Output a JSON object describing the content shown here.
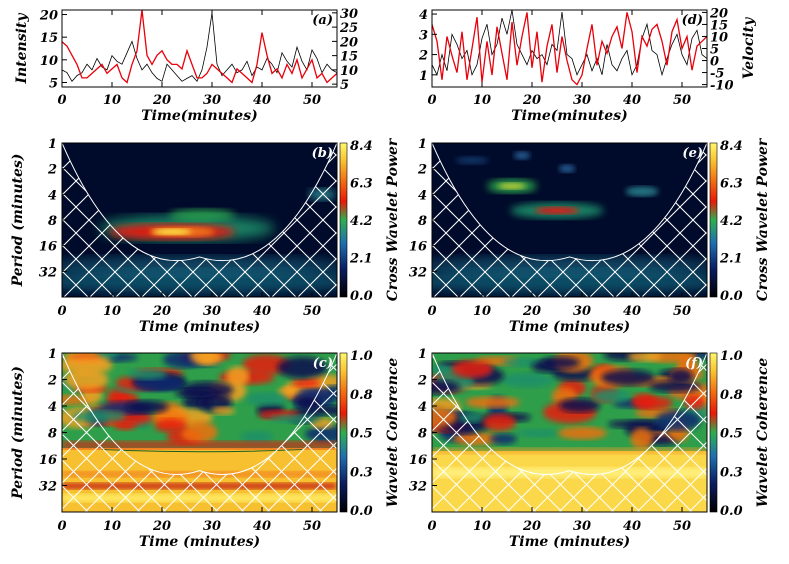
{
  "chart_data": [
    {
      "type": "line",
      "panel": "(a)",
      "xlabel": "Time(minutes)",
      "ylabel": "Intensity",
      "xlim": [
        0,
        55
      ],
      "xticks": [
        0,
        10,
        20,
        30,
        40,
        50
      ],
      "yticks_left": [
        5,
        10,
        15,
        20
      ],
      "yticks_right": [
        5,
        10,
        15,
        20,
        25,
        30
      ],
      "ylim_left": [
        4,
        21
      ],
      "ylim_right": [
        4,
        31
      ],
      "series": [
        {
          "color": "#e8000b",
          "axis": "left",
          "x": [
            0,
            1,
            2,
            3,
            4,
            5,
            6,
            7,
            8,
            9,
            10,
            11,
            12,
            13,
            14,
            15,
            16,
            17,
            18,
            19,
            20,
            21,
            22,
            23,
            24,
            25,
            26,
            27,
            28,
            29,
            30,
            31,
            32,
            33,
            34,
            35,
            36,
            37,
            38,
            39,
            40,
            41,
            42,
            43,
            44,
            45,
            46,
            47,
            48,
            49,
            50,
            51,
            52,
            53,
            54,
            55
          ],
          "y": [
            14,
            13,
            11,
            9,
            6,
            6,
            7,
            8,
            9,
            7,
            8,
            9,
            6,
            5,
            9,
            12,
            21,
            11,
            9,
            11,
            12,
            10,
            9,
            9,
            8,
            12,
            9,
            6,
            6,
            7,
            9,
            8,
            7,
            6,
            5,
            8,
            7,
            6,
            5,
            9,
            16,
            11,
            7,
            8,
            6,
            9,
            7,
            10,
            6,
            8,
            10,
            6,
            7,
            5,
            6,
            7
          ]
        },
        {
          "color": "#000000",
          "axis": "right",
          "x": [
            0,
            1,
            2,
            3,
            4,
            5,
            6,
            7,
            8,
            9,
            10,
            11,
            12,
            13,
            14,
            15,
            16,
            17,
            18,
            19,
            20,
            21,
            22,
            23,
            24,
            25,
            26,
            27,
            28,
            29,
            30,
            31,
            32,
            33,
            34,
            35,
            36,
            37,
            38,
            39,
            40,
            41,
            42,
            43,
            44,
            45,
            46,
            47,
            48,
            49,
            50,
            51,
            52,
            53,
            54,
            55
          ],
          "y": [
            10,
            9,
            6,
            8,
            9,
            12,
            10,
            14,
            11,
            10,
            15,
            13,
            12,
            16,
            20,
            14,
            10,
            12,
            9,
            7,
            6,
            12,
            10,
            8,
            6,
            7,
            8,
            6,
            10,
            18,
            30,
            12,
            8,
            10,
            12,
            9,
            10,
            13,
            8,
            11,
            10,
            14,
            12,
            9,
            16,
            13,
            11,
            18,
            13,
            10,
            17,
            14,
            9,
            12,
            10,
            9
          ]
        }
      ]
    },
    {
      "type": "line",
      "panel": "(d)",
      "xlabel": "Time(minutes)",
      "ylabel": "Velocity",
      "xlim": [
        0,
        55
      ],
      "xticks": [
        0,
        10,
        20,
        30,
        40,
        50
      ],
      "yticks_left": [
        1,
        2,
        3,
        4
      ],
      "yticks_right": [
        -10,
        -5,
        0,
        5,
        10,
        15,
        20
      ],
      "ylim_left": [
        0.4,
        4.2
      ],
      "ylim_right": [
        -11,
        21
      ],
      "series": [
        {
          "color": "#e8000b",
          "axis": "right",
          "x": [
            0,
            1,
            2,
            3,
            4,
            5,
            6,
            7,
            8,
            9,
            10,
            11,
            12,
            13,
            14,
            15,
            16,
            17,
            18,
            19,
            20,
            21,
            22,
            23,
            24,
            25,
            26,
            27,
            28,
            29,
            30,
            31,
            32,
            33,
            34,
            35,
            36,
            37,
            38,
            39,
            40,
            41,
            42,
            43,
            44,
            45,
            46,
            47,
            48,
            49,
            50,
            51,
            52,
            53,
            54,
            55
          ],
          "y": [
            15,
            8,
            -8,
            10,
            2,
            -5,
            12,
            -8,
            5,
            18,
            -9,
            8,
            -6,
            14,
            3,
            -8,
            16,
            -2,
            10,
            20,
            -3,
            12,
            -9,
            6,
            15,
            -5,
            10,
            0,
            -8,
            -10,
            -6,
            5,
            15,
            -2,
            8,
            3,
            10,
            14,
            5,
            20,
            12,
            -5,
            10,
            6,
            13,
            15,
            8,
            -2,
            12,
            17,
            5,
            10,
            -4,
            6,
            8,
            10
          ]
        },
        {
          "color": "#000000",
          "axis": "left",
          "x": [
            0,
            1,
            2,
            3,
            4,
            5,
            6,
            7,
            8,
            9,
            10,
            11,
            12,
            13,
            14,
            15,
            16,
            17,
            18,
            19,
            20,
            21,
            22,
            23,
            24,
            25,
            26,
            27,
            28,
            29,
            30,
            31,
            32,
            33,
            34,
            35,
            36,
            37,
            38,
            39,
            40,
            41,
            42,
            43,
            44,
            45,
            46,
            47,
            48,
            49,
            50,
            51,
            52,
            53,
            54,
            55
          ],
          "y": [
            1.5,
            1.0,
            2.0,
            1.2,
            3.0,
            2.5,
            1.8,
            2.2,
            1.0,
            1.5,
            2.8,
            3.5,
            2.0,
            2.5,
            3.8,
            3.0,
            4.2,
            2.5,
            2.0,
            1.5,
            2.2,
            1.8,
            2.0,
            1.5,
            2.5,
            2.2,
            4.1,
            2.0,
            1.8,
            1.0,
            1.5,
            2.0,
            1.2,
            1.8,
            1.0,
            2.5,
            1.5,
            1.2,
            1.8,
            2.2,
            1.0,
            1.5,
            2.8,
            3.5,
            2.2,
            2.0,
            1.0,
            1.8,
            2.5,
            3.0,
            2.0,
            1.5,
            2.8,
            3.2,
            2.0,
            1.8
          ]
        }
      ]
    },
    {
      "type": "heatmap",
      "panel": "(b)",
      "xlabel": "Time (minutes)",
      "ylabel": "Period (minutes)",
      "colorbar_label": "Cross Wavelet Power",
      "colorbar_ticks": [
        "0.0",
        "2.1",
        "4.2",
        "6.3",
        "8.4"
      ],
      "xticks": [
        0,
        10,
        20,
        30,
        40,
        50
      ],
      "yticks": [
        1,
        2,
        4,
        8,
        16,
        32
      ],
      "xlim": [
        0,
        55
      ]
    },
    {
      "type": "heatmap",
      "panel": "(e)",
      "xlabel": "Time (minutes)",
      "ylabel": "",
      "colorbar_label": "Cross Wavelet Power",
      "colorbar_ticks": [
        "0.0",
        "2.1",
        "4.2",
        "6.3",
        "8.4"
      ],
      "xticks": [
        0,
        10,
        20,
        30,
        40,
        50
      ],
      "yticks": [
        1,
        2,
        4,
        8,
        16,
        32
      ],
      "xlim": [
        0,
        55
      ]
    },
    {
      "type": "heatmap",
      "panel": "(c)",
      "xlabel": "Time (minutes)",
      "ylabel": "Period (minutes)",
      "colorbar_label": "Wavelet Coherence",
      "colorbar_ticks": [
        "0.0",
        "0.3",
        "0.5",
        "0.8",
        "1.0"
      ],
      "xticks": [
        0,
        10,
        20,
        30,
        40,
        50
      ],
      "yticks": [
        1,
        2,
        4,
        8,
        16,
        32
      ],
      "xlim": [
        0,
        55
      ]
    },
    {
      "type": "heatmap",
      "panel": "(f)",
      "xlabel": "Time (minutes)",
      "ylabel": "",
      "colorbar_label": "Wavelet Coherence",
      "colorbar_ticks": [
        "0.0",
        "0.3",
        "0.5",
        "0.8",
        "1.0"
      ],
      "xticks": [
        0,
        10,
        20,
        30,
        40,
        50
      ],
      "yticks": [
        1,
        2,
        4,
        8,
        16,
        32
      ],
      "xlim": [
        0,
        55
      ]
    }
  ],
  "colors": {
    "red_series": "#e8000b",
    "black_series": "#000000",
    "heat_dark": "#000a2a",
    "heat_blue": "#102a7a",
    "heat_green": "#2f9e55",
    "heat_red": "#e81808",
    "heat_orange": "#f07a1a",
    "heat_yellow": "#fff04a"
  }
}
